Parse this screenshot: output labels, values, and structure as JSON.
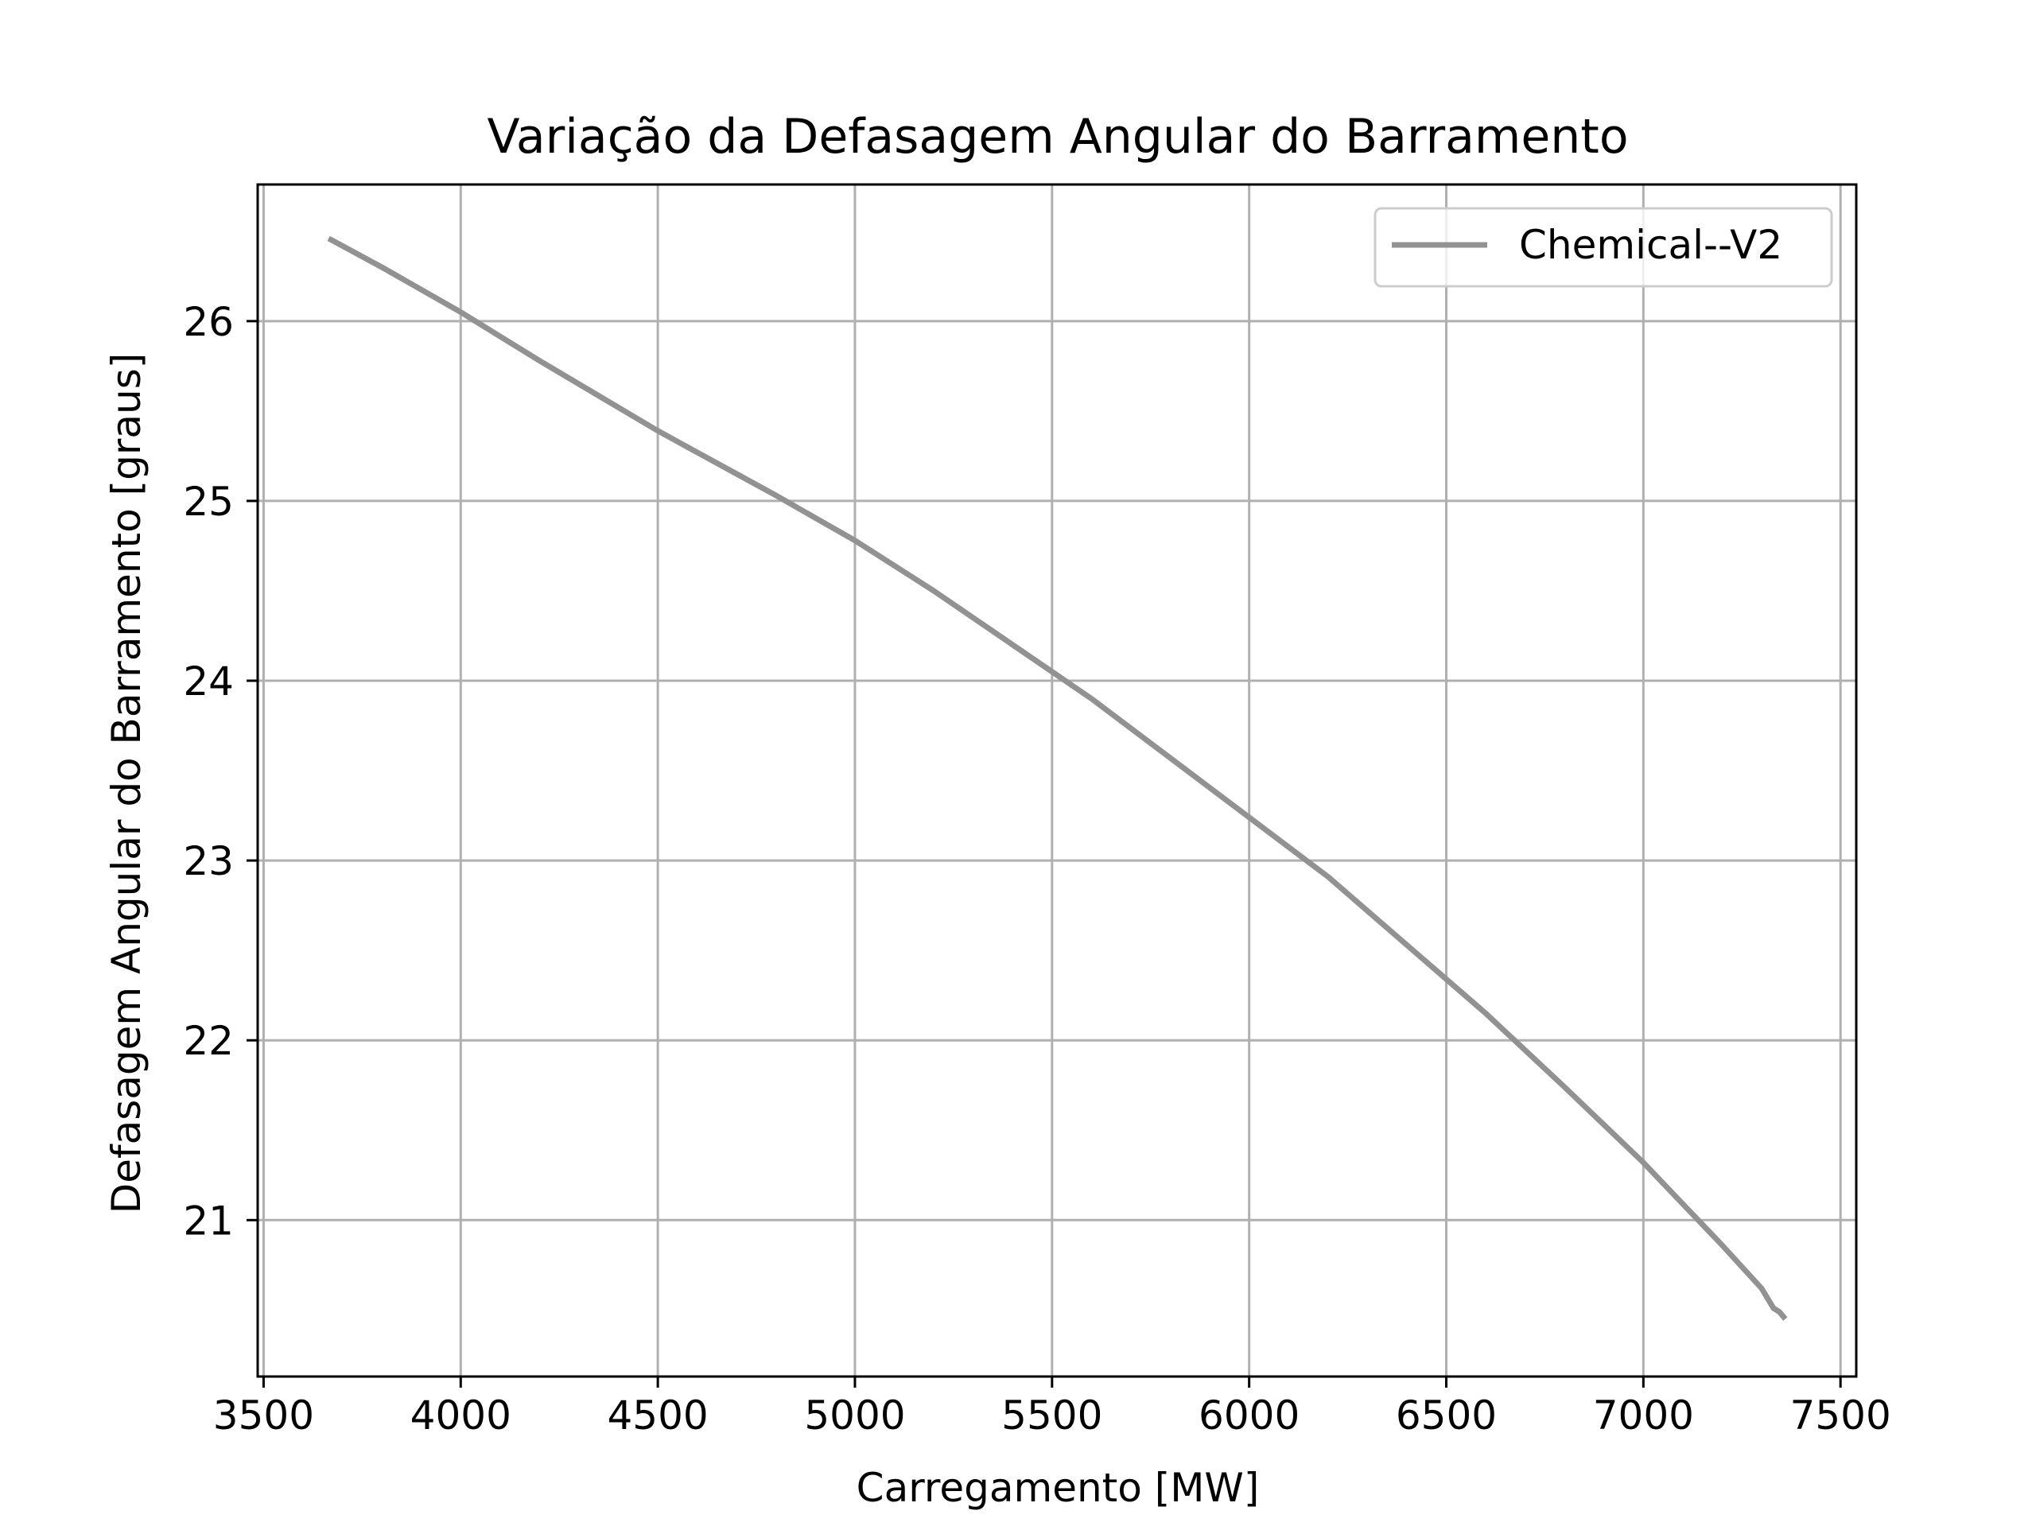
{
  "chart_data": {
    "type": "line",
    "title": "Variação da Defasagem Angular do Barramento",
    "xlabel": "Carregamento [MW]",
    "ylabel": "Defasagem Angular do Barramento [graus]",
    "xlim": [
      3485,
      7540
    ],
    "ylim": [
      20.13,
      26.76
    ],
    "xticks": [
      3500,
      4000,
      4500,
      5000,
      5500,
      6000,
      6500,
      7000,
      7500
    ],
    "yticks": [
      21,
      22,
      23,
      24,
      25,
      26
    ],
    "grid": true,
    "legend_position": "upper right",
    "series": [
      {
        "name": "Chemical--V2",
        "color": "#929292",
        "x": [
          3665,
          3800,
          4000,
          4200,
          4400,
          4500,
          4600,
          4700,
          4800,
          5000,
          5200,
          5400,
          5500,
          5600,
          5800,
          6000,
          6200,
          6400,
          6500,
          6600,
          6800,
          7000,
          7100,
          7200,
          7300,
          7330,
          7345,
          7360
        ],
        "y": [
          26.46,
          26.3,
          26.05,
          25.78,
          25.52,
          25.39,
          25.27,
          25.15,
          25.03,
          24.78,
          24.5,
          24.2,
          24.05,
          23.9,
          23.57,
          23.24,
          22.91,
          22.53,
          22.34,
          22.15,
          21.74,
          21.32,
          21.09,
          20.86,
          20.62,
          20.51,
          20.49,
          20.45
        ]
      }
    ]
  }
}
